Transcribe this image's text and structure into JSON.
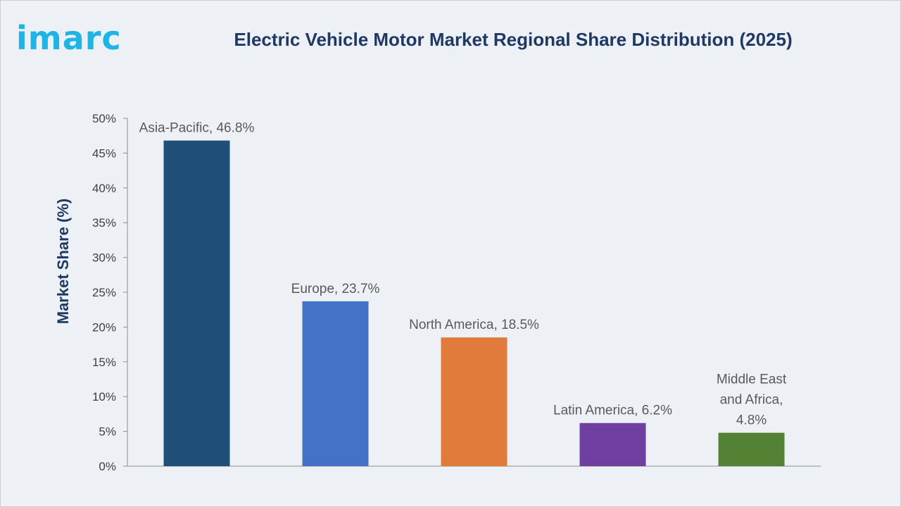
{
  "brand": {
    "logo_text": "imarc",
    "color": "#1fb4e6"
  },
  "chart_data": {
    "type": "bar",
    "title": "Electric Vehicle Motor Market Regional Share Distribution (2025)",
    "xlabel": "",
    "ylabel": "Market Share (%)",
    "ylim": [
      0,
      50
    ],
    "ytick_step": 5,
    "ytick_suffix": "%",
    "grid": false,
    "categories": [
      "Asia-Pacific",
      "Europe",
      "North America",
      "Latin America",
      "Middle East and Africa"
    ],
    "values": [
      46.8,
      23.7,
      18.5,
      6.2,
      4.8
    ],
    "data_labels": [
      [
        "Asia-Pacific, 46.8%"
      ],
      [
        "Europe, 23.7%"
      ],
      [
        "North America, 18.5%"
      ],
      [
        "Latin America, 6.2%"
      ],
      [
        "Middle East",
        "and Africa,",
        "4.8%"
      ]
    ],
    "colors": [
      "#1f4e79",
      "#4472c4",
      "#e07b39",
      "#7040a0",
      "#548235"
    ]
  }
}
